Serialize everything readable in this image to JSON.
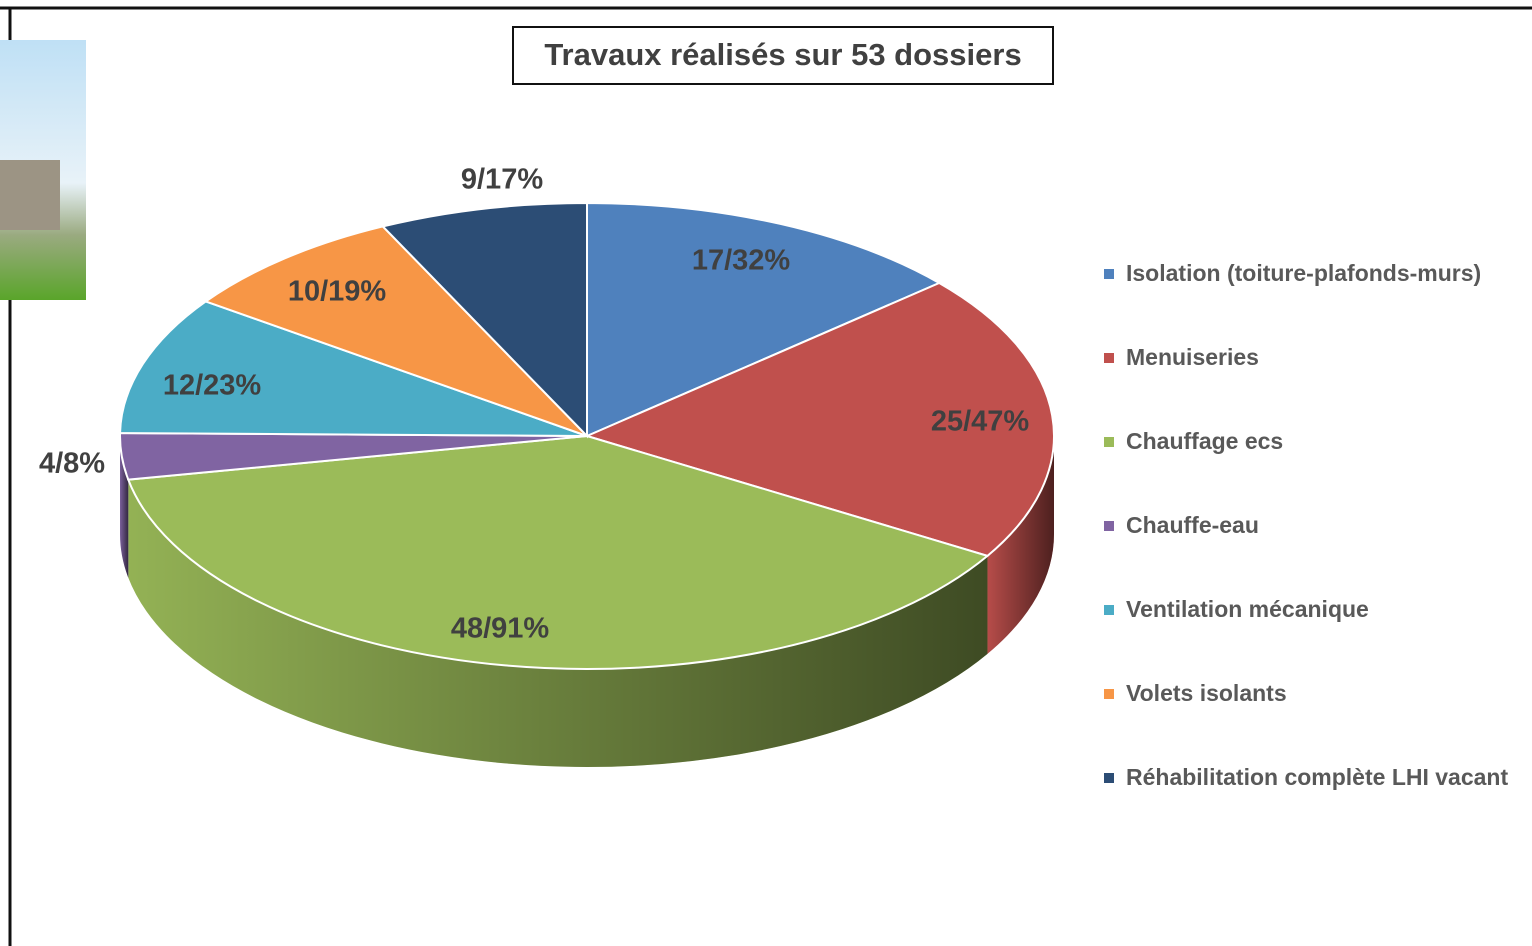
{
  "chart_data": {
    "type": "pie3d",
    "title": "Travaux réalisés sur 53 dossiers",
    "categories": [
      "Isolation (toiture-plafonds-murs)",
      "Menuiseries",
      "Chauffage ecs",
      "Chauffe-eau",
      "Ventilation mécanique",
      "Volets isolants",
      "Réhabilitation complète LHI vacant"
    ],
    "values": [
      17,
      25,
      48,
      4,
      12,
      10,
      9
    ],
    "value_labels": [
      "17/32%",
      "25/47%",
      "48/91%",
      "4/8%",
      "12/23%",
      "10/19%",
      "9/17%"
    ],
    "colors": [
      "#4f81bd",
      "#c0504d",
      "#9bbb59",
      "#8064a2",
      "#4bacc6",
      "#f79646",
      "#2c4d75"
    ],
    "legend": "right"
  }
}
